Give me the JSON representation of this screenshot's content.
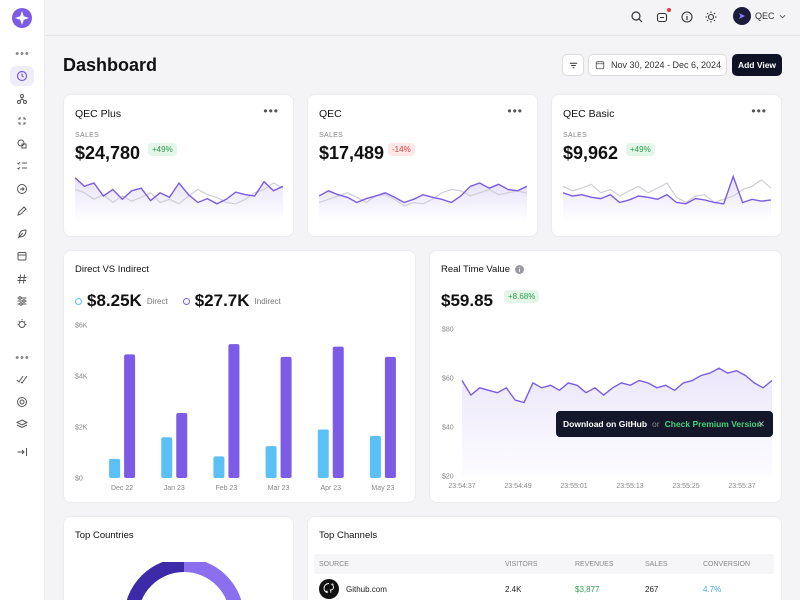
{
  "header": {
    "user_name": "QEC"
  },
  "page": {
    "title": "Dashboard",
    "date_range": "Nov 30, 2024 - Dec 6, 2024",
    "add_view_label": "Add View"
  },
  "colors": {
    "accent": "#7c5ce6",
    "blue": "#5bc0f5",
    "green": "#2e9e4f",
    "red": "#d84040"
  },
  "product_cards": [
    {
      "title": "QEC Plus",
      "sales_label": "SALES",
      "value": "$24,780",
      "change": "+49%",
      "trend": "up"
    },
    {
      "title": "QEC",
      "sales_label": "SALES",
      "value": "$17,489",
      "change": "-14%",
      "trend": "down"
    },
    {
      "title": "QEC Basic",
      "sales_label": "SALES",
      "value": "$9,962",
      "change": "+49%",
      "trend": "up"
    }
  ],
  "direct_indirect": {
    "title": "Direct VS Indirect",
    "direct_value": "$8.25K",
    "direct_label": "Direct",
    "indirect_value": "$27.7K",
    "indirect_label": "Indirect"
  },
  "realtime": {
    "title": "Real Time Value",
    "value": "$59.85",
    "change": "+8.68%"
  },
  "tooltip": {
    "download": "Download on GitHub",
    "or": "or",
    "premium": "Check Premium Version",
    "close": "✕"
  },
  "top_countries": {
    "title": "Top Countries"
  },
  "top_channels": {
    "title": "Top Channels",
    "headers": [
      "SOURCE",
      "VISITORS",
      "REVENUES",
      "SALES",
      "CONVERSION"
    ],
    "rows": [
      {
        "source": "Github.com",
        "visitors": "2.4K",
        "revenues": "$3,877",
        "sales": "267",
        "conversion": "4.7%"
      }
    ]
  },
  "chart_data": [
    {
      "type": "bar",
      "title": "Direct VS Indirect",
      "categories": [
        "Dec 22",
        "Jan 23",
        "Feb 23",
        "Mar 23",
        "Apr 23",
        "May 23"
      ],
      "series": [
        {
          "name": "Direct",
          "color": "#5bc0f5",
          "values": [
            750,
            1600,
            850,
            1250,
            1900,
            1650
          ]
        },
        {
          "name": "Indirect",
          "color": "#7c5ce6",
          "values": [
            4850,
            2550,
            5250,
            4750,
            5150,
            4750
          ]
        }
      ],
      "y_ticks": [
        "$0",
        "$2K",
        "$4K",
        "$6K"
      ],
      "ylim": [
        0,
        6000
      ]
    },
    {
      "type": "area",
      "title": "Real Time Value",
      "x_ticks": [
        "23:54:37",
        "23:54:49",
        "23:55:01",
        "23:55:13",
        "23:55:25",
        "23:55:37"
      ],
      "y_ticks": [
        "$20",
        "$40",
        "$60",
        "$80"
      ],
      "ylim": [
        20,
        80
      ],
      "values": [
        59,
        53,
        56,
        55,
        54,
        56,
        51,
        50,
        58,
        56,
        57,
        55,
        58,
        57,
        54,
        56,
        53,
        56,
        58,
        57,
        59,
        58,
        56,
        57,
        55,
        58,
        59,
        61,
        62,
        64,
        62,
        63,
        61,
        58,
        56,
        59
      ]
    },
    {
      "type": "line",
      "title": "QEC Plus",
      "series": [
        {
          "name": "",
          "values": [
            68,
            55,
            60,
            40,
            50,
            35,
            48,
            52,
            33,
            45,
            38,
            60,
            42,
            30,
            36,
            28,
            35,
            46,
            42,
            40,
            62,
            48,
            55
          ]
        },
        {
          "name": "",
          "values": [
            50,
            45,
            35,
            42,
            30,
            40,
            32,
            38,
            45,
            30,
            35,
            28,
            40,
            50,
            42,
            38,
            30,
            28,
            35,
            45,
            50,
            60,
            52
          ]
        }
      ]
    },
    {
      "type": "line",
      "title": "QEC",
      "series": [
        {
          "name": "",
          "values": [
            40,
            48,
            42,
            38,
            30,
            36,
            40,
            45,
            38,
            30,
            35,
            42,
            38,
            35,
            30,
            40,
            55,
            60,
            52,
            58,
            50,
            48,
            55
          ]
        },
        {
          "name": "",
          "values": [
            30,
            35,
            40,
            45,
            38,
            30,
            40,
            42,
            35,
            25,
            30,
            28,
            35,
            45,
            50,
            48,
            40,
            45,
            50,
            42,
            45,
            48,
            44
          ]
        }
      ]
    },
    {
      "type": "line",
      "title": "QEC Basic",
      "series": [
        {
          "name": "",
          "values": [
            45,
            40,
            42,
            38,
            36,
            42,
            30,
            34,
            40,
            38,
            35,
            42,
            30,
            28,
            36,
            34,
            30,
            28,
            70,
            30,
            35,
            32,
            34
          ]
        },
        {
          "name": "",
          "values": [
            55,
            48,
            52,
            58,
            45,
            50,
            40,
            48,
            55,
            45,
            52,
            60,
            38,
            30,
            40,
            42,
            30,
            35,
            40,
            50,
            55,
            65,
            52
          ]
        }
      ]
    }
  ]
}
